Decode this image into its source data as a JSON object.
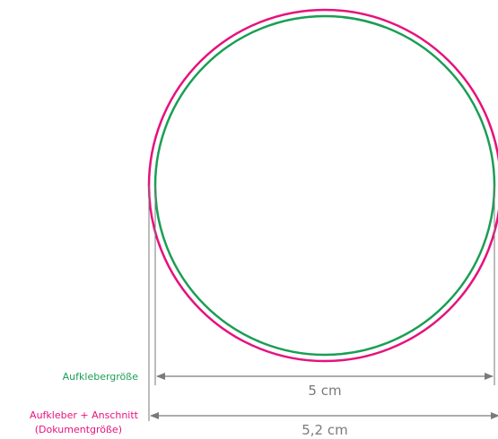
{
  "colors": {
    "bleed": "#e6127c",
    "trim": "#1a9e54",
    "dimension": "#7a7a7a",
    "background": "#ffffff"
  },
  "labels": {
    "trim_size": "Aufklebergröße",
    "bleed_size_line1": "Aufkleber + Anschnitt",
    "bleed_size_line2": "(Dokumentgröße)"
  },
  "dimensions": {
    "trim_width": "5 cm",
    "bleed_width": "5,2 cm"
  }
}
